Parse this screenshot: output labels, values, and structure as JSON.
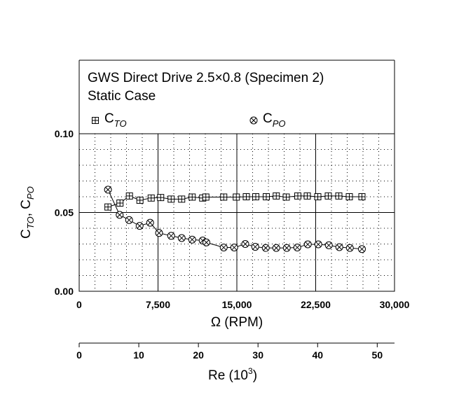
{
  "chart_data": {
    "type": "line",
    "title": "GWS Direct Drive 2.5×0.8 (Specimen 2)",
    "subtitle": "Static Case",
    "xlabel": "Ω (RPM)",
    "ylabel": {
      "ct_main": "C",
      "ct_sub": "TO",
      "sep": ", ",
      "cp_main": "C",
      "cp_sub": "PO"
    },
    "xlim": [
      0,
      30000
    ],
    "ylim": [
      0.0,
      0.1
    ],
    "x_tick_labels": [
      "0",
      "7,500",
      "15,000",
      "22,500",
      "30,000"
    ],
    "y_tick_labels": [
      "0.00",
      "0.05",
      "0.10"
    ],
    "secondary_axis": {
      "label_main": "Re (10",
      "label_exp": "3",
      "label_close": ")",
      "xlim": [
        0,
        52.9
      ],
      "tick_labels": [
        "0",
        "10",
        "20",
        "30",
        "40",
        "50"
      ]
    },
    "legend": {
      "placement": "top",
      "entries": [
        {
          "main": "C",
          "sub": "TO",
          "marker": "square-plus"
        },
        {
          "main": "C",
          "sub": "PO",
          "marker": "circle-x"
        }
      ]
    },
    "grid": true,
    "series": [
      {
        "name": "C_TO",
        "marker": "square-plus",
        "points": [
          {
            "x": 2740,
            "y": 0.0535
          },
          {
            "x": 3880,
            "y": 0.056
          },
          {
            "x": 4780,
            "y": 0.0605
          },
          {
            "x": 5780,
            "y": 0.0578
          },
          {
            "x": 6850,
            "y": 0.0592
          },
          {
            "x": 7750,
            "y": 0.0595
          },
          {
            "x": 8750,
            "y": 0.0585
          },
          {
            "x": 9750,
            "y": 0.0585
          },
          {
            "x": 10750,
            "y": 0.0598
          },
          {
            "x": 11750,
            "y": 0.0592
          },
          {
            "x": 12050,
            "y": 0.0598
          },
          {
            "x": 13750,
            "y": 0.0598
          },
          {
            "x": 14950,
            "y": 0.0598
          },
          {
            "x": 15900,
            "y": 0.06
          },
          {
            "x": 16800,
            "y": 0.06
          },
          {
            "x": 17800,
            "y": 0.06
          },
          {
            "x": 18750,
            "y": 0.0605
          },
          {
            "x": 19700,
            "y": 0.0598
          },
          {
            "x": 20800,
            "y": 0.0605
          },
          {
            "x": 21700,
            "y": 0.0605
          },
          {
            "x": 22700,
            "y": 0.06
          },
          {
            "x": 23700,
            "y": 0.0605
          },
          {
            "x": 24700,
            "y": 0.0605
          },
          {
            "x": 25700,
            "y": 0.06
          },
          {
            "x": 26900,
            "y": 0.06
          }
        ]
      },
      {
        "name": "C_PO",
        "marker": "circle-x",
        "points": [
          {
            "x": 2740,
            "y": 0.0645
          },
          {
            "x": 3850,
            "y": 0.0485
          },
          {
            "x": 4750,
            "y": 0.0452
          },
          {
            "x": 5750,
            "y": 0.0415
          },
          {
            "x": 6750,
            "y": 0.0435
          },
          {
            "x": 7600,
            "y": 0.037
          },
          {
            "x": 8750,
            "y": 0.0352
          },
          {
            "x": 9750,
            "y": 0.0338
          },
          {
            "x": 10750,
            "y": 0.0328
          },
          {
            "x": 11750,
            "y": 0.0322
          },
          {
            "x": 12100,
            "y": 0.031
          },
          {
            "x": 13750,
            "y": 0.0278
          },
          {
            "x": 14750,
            "y": 0.0278
          },
          {
            "x": 15800,
            "y": 0.03
          },
          {
            "x": 16750,
            "y": 0.0282
          },
          {
            "x": 17750,
            "y": 0.0275
          },
          {
            "x": 18750,
            "y": 0.0275
          },
          {
            "x": 19750,
            "y": 0.0275
          },
          {
            "x": 20750,
            "y": 0.0278
          },
          {
            "x": 21750,
            "y": 0.0298
          },
          {
            "x": 22750,
            "y": 0.0298
          },
          {
            "x": 23750,
            "y": 0.0292
          },
          {
            "x": 24750,
            "y": 0.028
          },
          {
            "x": 25750,
            "y": 0.0275
          },
          {
            "x": 26900,
            "y": 0.0268
          }
        ]
      }
    ]
  }
}
